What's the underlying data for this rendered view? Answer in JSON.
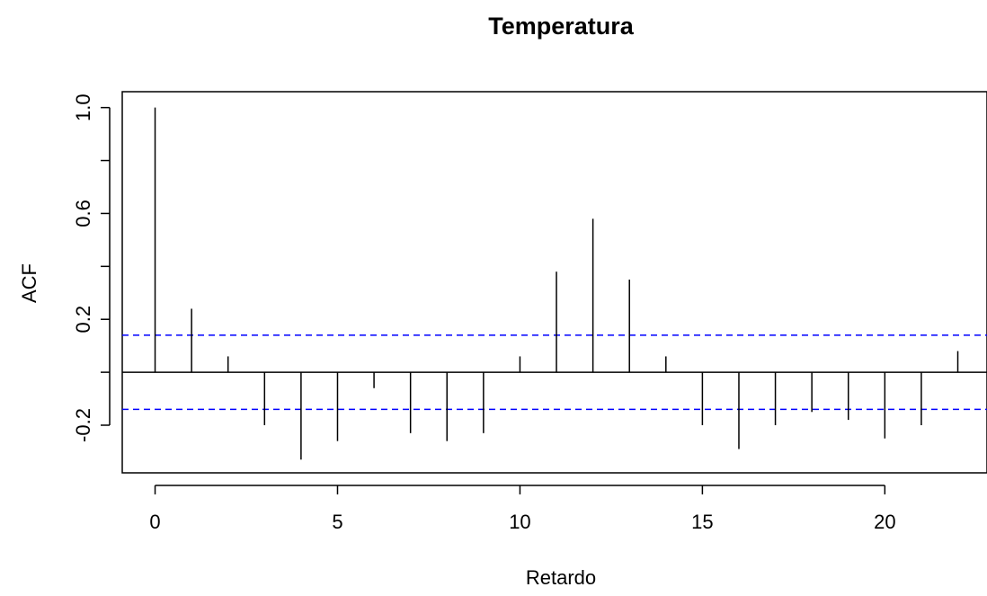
{
  "chart_data": {
    "type": "bar",
    "title": "Temperatura",
    "xlabel": "Retardo",
    "ylabel": "ACF",
    "x": [
      0,
      1,
      2,
      3,
      4,
      5,
      6,
      7,
      8,
      9,
      10,
      11,
      12,
      13,
      14,
      15,
      16,
      17,
      18,
      19,
      20,
      21,
      22
    ],
    "values": [
      1.0,
      0.24,
      0.06,
      -0.2,
      -0.33,
      -0.26,
      -0.06,
      -0.23,
      -0.26,
      -0.23,
      0.06,
      0.38,
      0.58,
      0.35,
      0.06,
      -0.2,
      -0.29,
      -0.2,
      -0.15,
      -0.18,
      -0.25,
      -0.2,
      0.08
    ],
    "confidence_band": 0.14,
    "confidence_color": "#0000ff",
    "xlim": [
      -0.9,
      22.8
    ],
    "ylim": [
      -0.38,
      1.06
    ],
    "x_ticks": [
      0,
      5,
      10,
      15,
      20
    ],
    "x_tick_labels": [
      "0",
      "5",
      "10",
      "15",
      "20"
    ],
    "y_ticks": [
      -0.2,
      0.2,
      0.6,
      1.0
    ],
    "y_tick_labels": [
      "-0.2",
      "0.2",
      "0.6",
      "1.0"
    ],
    "y_minor_ticks": [
      0.0,
      0.4,
      0.8
    ],
    "grid": false
  }
}
